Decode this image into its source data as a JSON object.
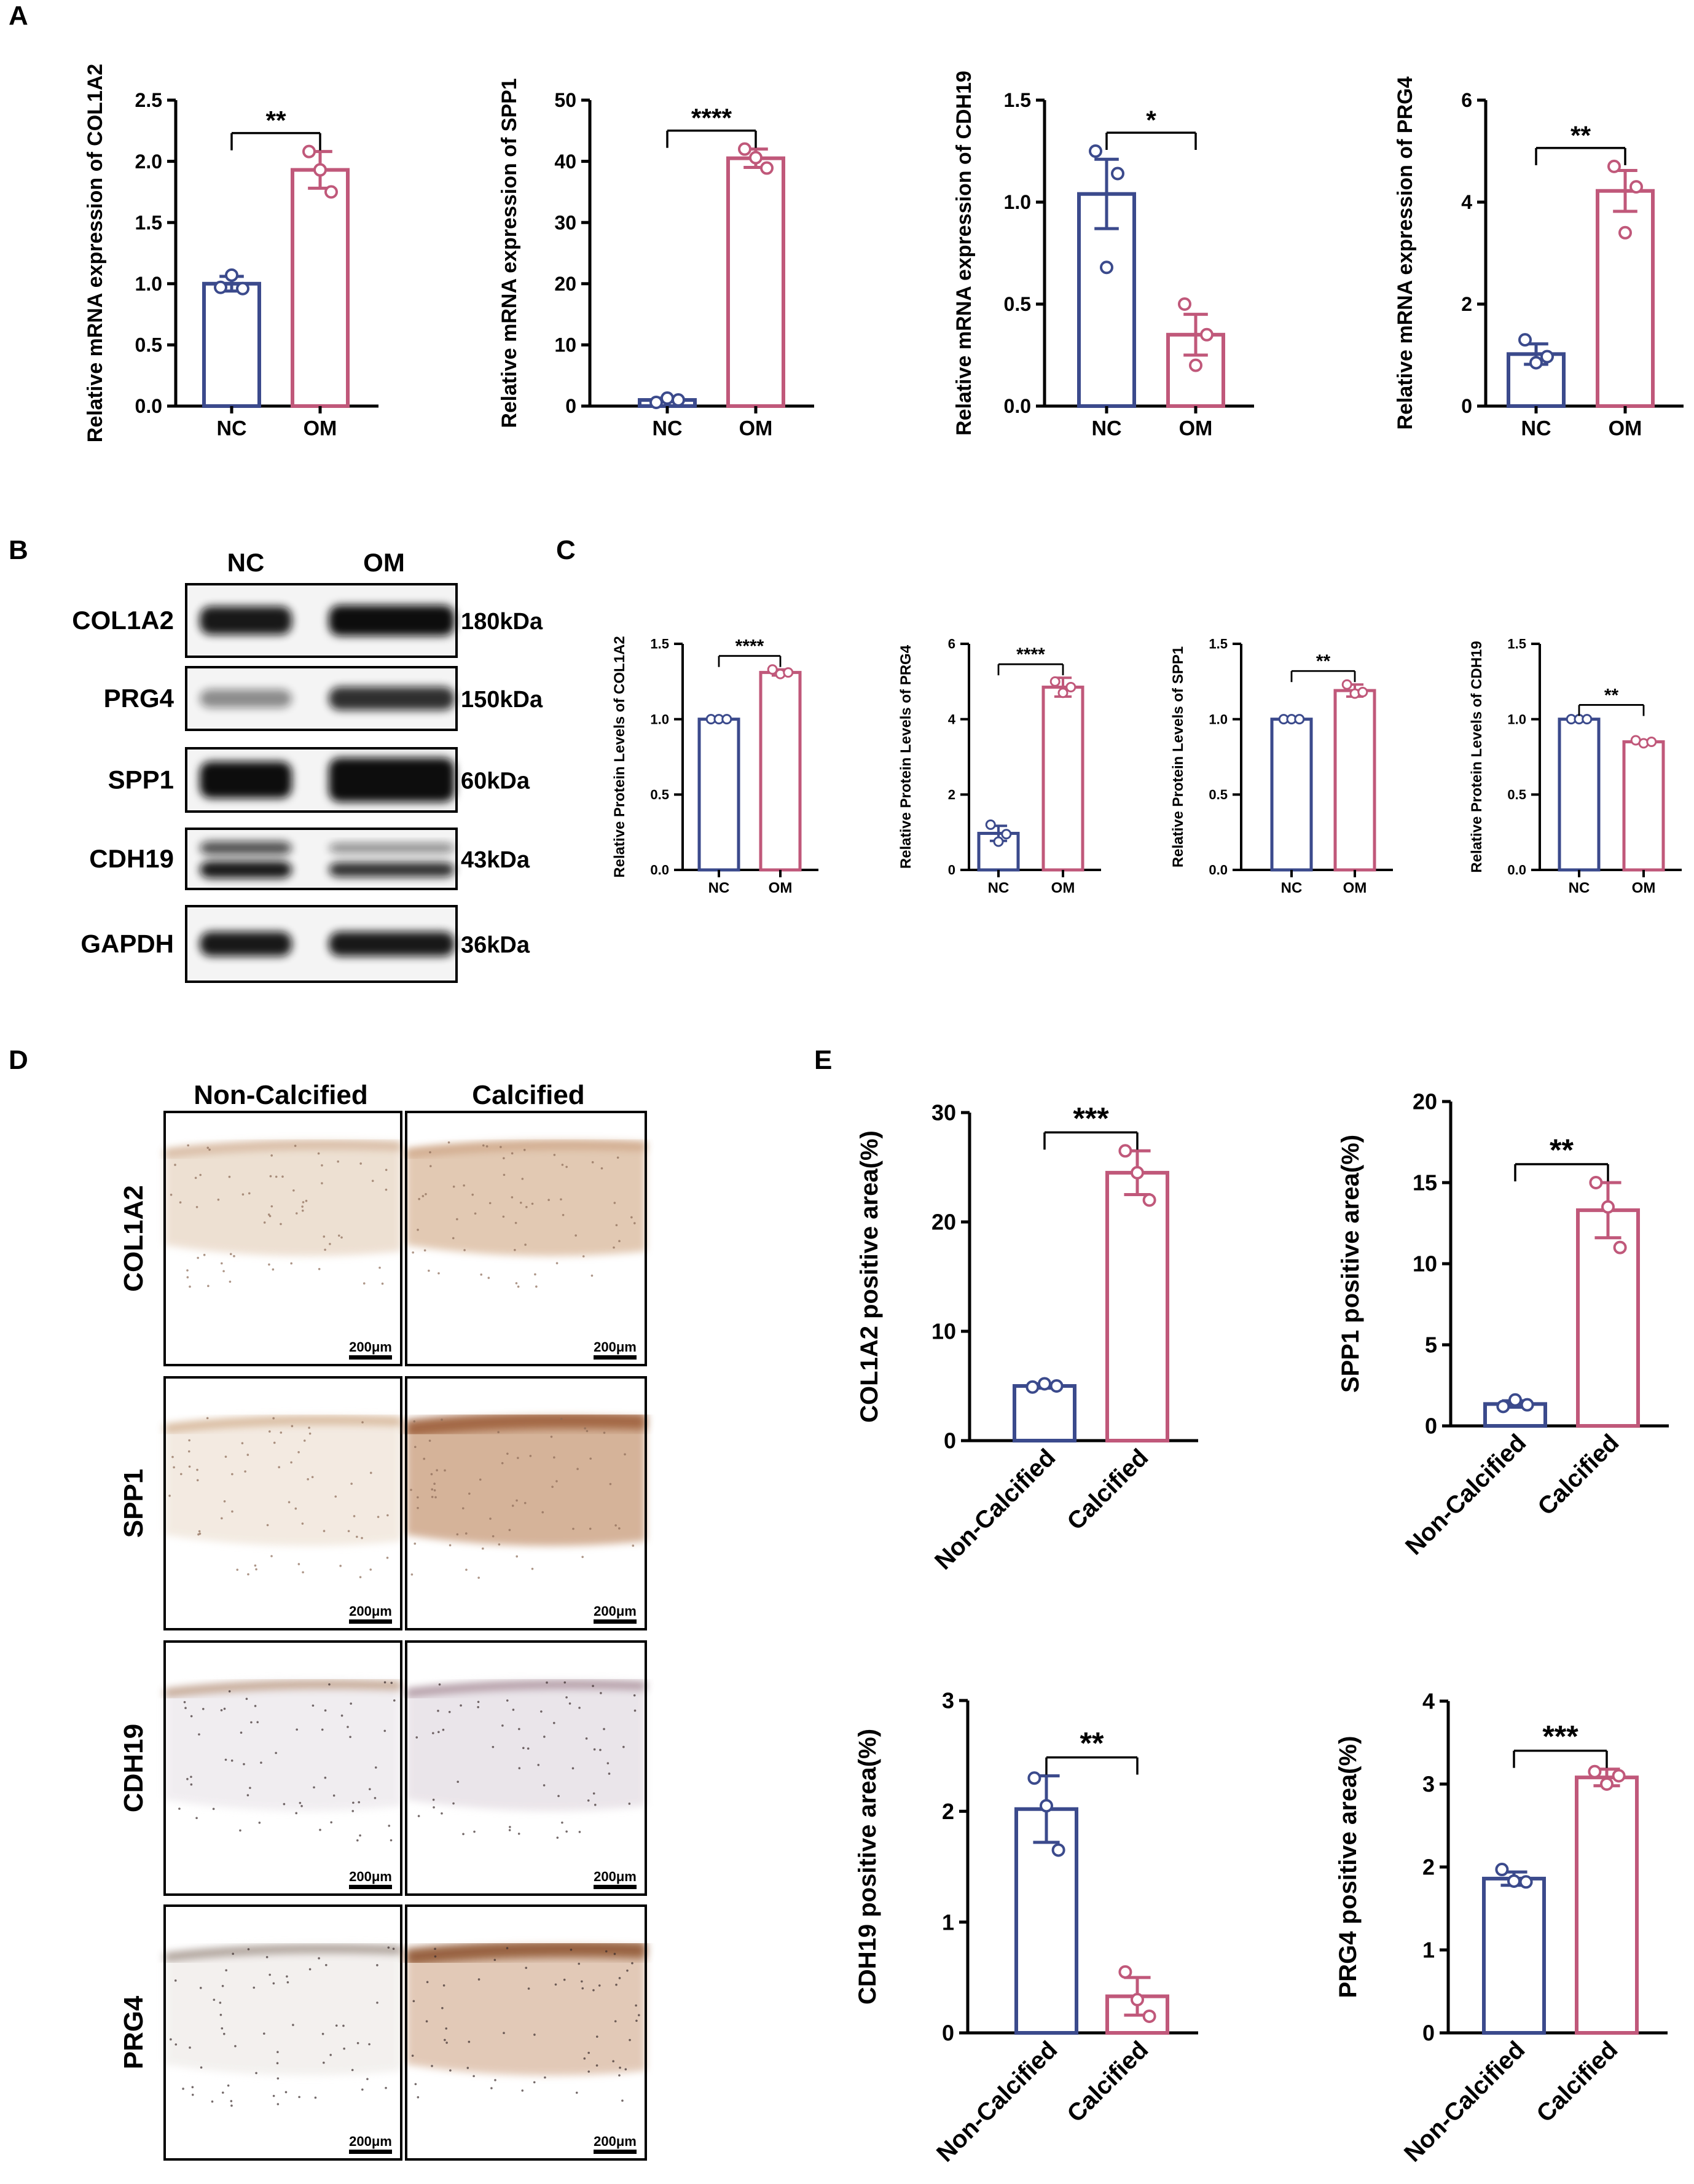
{
  "panel_letters": {
    "a": "A",
    "b": "B",
    "c": "C",
    "d": "D",
    "e": "E"
  },
  "colors": {
    "nc": "#3b4a8c",
    "om": "#c0587a",
    "axis": "#000000"
  },
  "western_blot": {
    "columns": [
      "NC",
      "OM"
    ],
    "rows": [
      {
        "protein": "COL1A2",
        "size": "180kDa"
      },
      {
        "protein": "PRG4",
        "size": "150kDa"
      },
      {
        "protein": "SPP1",
        "size": "60kDa"
      },
      {
        "protein": "CDH19",
        "size": "43kDa"
      },
      {
        "protein": "GAPDH",
        "size": "36kDa"
      }
    ]
  },
  "ihc": {
    "columns": [
      "Non-Calcified",
      "Calcified"
    ],
    "rows": [
      "COL1A2",
      "SPP1",
      "CDH19",
      "PRG4"
    ],
    "scale_bar": "200μm"
  },
  "chart_data": [
    {
      "panel": "A",
      "type": "bar",
      "categories": [
        "NC",
        "OM"
      ],
      "values": [
        1.0,
        1.93
      ],
      "errors": [
        0.06,
        0.15
      ],
      "points": [
        [
          0.97,
          1.07,
          0.96
        ],
        [
          2.08,
          1.93,
          1.75
        ]
      ],
      "ylim": [
        0,
        2.5
      ],
      "yticks": [
        0.0,
        0.5,
        1.0,
        1.5,
        2.0,
        2.5
      ],
      "ylabel": "Relative mRNA expression of COL1A2",
      "significance": "**"
    },
    {
      "panel": "A",
      "type": "bar",
      "categories": [
        "NC",
        "OM"
      ],
      "values": [
        1.0,
        40.5
      ],
      "errors": [
        0.3,
        1.5
      ],
      "points": [
        [
          0.6,
          1.3,
          1.0
        ],
        [
          42.0,
          40.6,
          38.9
        ]
      ],
      "ylim": [
        0,
        50
      ],
      "yticks": [
        0,
        10,
        20,
        30,
        40,
        50
      ],
      "ylabel": "Relative mRNA expression of SPP1",
      "significance": "****"
    },
    {
      "panel": "A",
      "type": "bar",
      "categories": [
        "NC",
        "OM"
      ],
      "values": [
        1.04,
        0.35
      ],
      "errors": [
        0.17,
        0.1
      ],
      "points": [
        [
          1.25,
          0.68,
          1.14
        ],
        [
          0.5,
          0.2,
          0.35
        ]
      ],
      "ylim": [
        0,
        1.5
      ],
      "yticks": [
        0.0,
        0.5,
        1.0,
        1.5
      ],
      "ylabel": "Relative mRNA expression of CDH19",
      "significance": "*"
    },
    {
      "panel": "A",
      "type": "bar",
      "categories": [
        "NC",
        "OM"
      ],
      "values": [
        1.02,
        4.22
      ],
      "errors": [
        0.2,
        0.4
      ],
      "points": [
        [
          1.3,
          0.85,
          0.97
        ],
        [
          4.7,
          3.4,
          4.3
        ]
      ],
      "ylim": [
        0,
        6
      ],
      "yticks": [
        0,
        2,
        4,
        6
      ],
      "ylabel": "Relative mRNA expression of PRG4",
      "significance": "**"
    },
    {
      "panel": "C",
      "type": "bar",
      "categories": [
        "NC",
        "OM"
      ],
      "values": [
        1.0,
        1.31
      ],
      "errors": [
        0.005,
        0.02
      ],
      "points": [
        [
          1.0,
          1.0,
          1.0
        ],
        [
          1.33,
          1.3,
          1.31
        ]
      ],
      "ylim": [
        0,
        1.5
      ],
      "yticks": [
        0.0,
        0.5,
        1.0,
        1.5
      ],
      "ylabel": "Relative Protein Levels of COL1A2",
      "significance": "****"
    },
    {
      "panel": "C",
      "type": "bar",
      "categories": [
        "NC",
        "OM"
      ],
      "values": [
        0.97,
        4.85
      ],
      "errors": [
        0.2,
        0.25
      ],
      "points": [
        [
          1.2,
          0.75,
          0.95
        ],
        [
          5.0,
          4.7,
          4.85
        ]
      ],
      "ylim": [
        0,
        6
      ],
      "yticks": [
        0,
        2,
        4,
        6
      ],
      "ylabel": "Relative Protein Levels of PRG4",
      "significance": "****"
    },
    {
      "panel": "C",
      "type": "bar",
      "categories": [
        "NC",
        "OM"
      ],
      "values": [
        1.0,
        1.19
      ],
      "errors": [
        0.01,
        0.04
      ],
      "points": [
        [
          1.0,
          1.0,
          1.0
        ],
        [
          1.23,
          1.17,
          1.18
        ]
      ],
      "ylim": [
        0,
        1.5
      ],
      "yticks": [
        0.0,
        0.5,
        1.0,
        1.5
      ],
      "ylabel": "Relative Protein Levels of SPP1",
      "significance": "**"
    },
    {
      "panel": "C",
      "type": "bar",
      "categories": [
        "NC",
        "OM"
      ],
      "values": [
        1.0,
        0.85
      ],
      "errors": [
        0.005,
        0.01
      ],
      "points": [
        [
          1.0,
          1.0,
          1.0
        ],
        [
          0.86,
          0.84,
          0.85
        ]
      ],
      "ylim": [
        0,
        1.5
      ],
      "yticks": [
        0.0,
        0.5,
        1.0,
        1.5
      ],
      "ylabel": "Relative Protein Levels of CDH19",
      "significance": "**"
    },
    {
      "panel": "E",
      "type": "bar",
      "categories": [
        "Non-Calcified",
        "Calcified"
      ],
      "values": [
        5.0,
        24.5
      ],
      "errors": [
        0.2,
        2.0
      ],
      "points": [
        [
          4.9,
          5.2,
          5.0
        ],
        [
          26.5,
          24.5,
          22.0
        ]
      ],
      "ylim": [
        0,
        30
      ],
      "yticks": [
        0,
        10,
        20,
        30
      ],
      "ylabel": "COL1A2 positive area(%)",
      "significance": "***"
    },
    {
      "panel": "E",
      "type": "bar",
      "categories": [
        "Non-Calcified",
        "Calcified"
      ],
      "values": [
        1.35,
        13.3
      ],
      "errors": [
        0.2,
        1.7
      ],
      "points": [
        [
          1.2,
          1.6,
          1.3
        ],
        [
          15.0,
          13.5,
          11.0
        ]
      ],
      "ylim": [
        0,
        20
      ],
      "yticks": [
        0,
        5,
        10,
        15,
        20
      ],
      "ylabel": "SPP1 positive area(%)",
      "significance": "**"
    },
    {
      "panel": "E",
      "type": "bar",
      "categories": [
        "Non-Calcified",
        "Calcified"
      ],
      "values": [
        2.02,
        0.33
      ],
      "errors": [
        0.3,
        0.17
      ],
      "points": [
        [
          2.3,
          2.05,
          1.65
        ],
        [
          0.55,
          0.3,
          0.15
        ]
      ],
      "ylim": [
        0,
        3
      ],
      "yticks": [
        0,
        1,
        2,
        3
      ],
      "ylabel": "CDH19 positive area(%)",
      "significance": "**"
    },
    {
      "panel": "E",
      "type": "bar",
      "categories": [
        "Non-Calcified",
        "Calcified"
      ],
      "values": [
        1.86,
        3.08
      ],
      "errors": [
        0.08,
        0.1
      ],
      "points": [
        [
          1.97,
          1.83,
          1.82
        ],
        [
          3.15,
          3.0,
          3.1
        ]
      ],
      "ylim": [
        0,
        4
      ],
      "yticks": [
        0,
        1,
        2,
        3,
        4
      ],
      "ylabel": "PRG4 positive area(%)",
      "significance": "***"
    }
  ]
}
